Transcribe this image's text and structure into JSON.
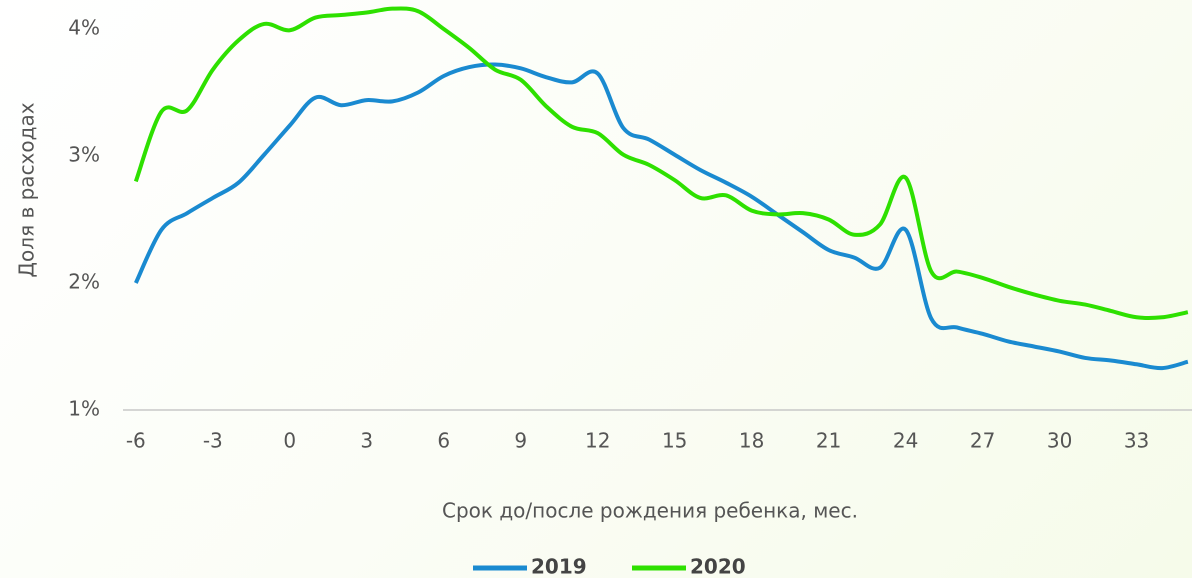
{
  "chart_data": {
    "type": "line",
    "xlabel": "Срок до/после рождения ребенка, мес.",
    "ylabel": "Доля в расходах",
    "x": [
      -6,
      -5,
      -4,
      -3,
      -2,
      -1,
      0,
      1,
      2,
      3,
      4,
      5,
      6,
      7,
      8,
      9,
      10,
      11,
      12,
      13,
      14,
      15,
      16,
      17,
      18,
      19,
      20,
      21,
      22,
      23,
      24,
      25,
      26,
      27,
      28,
      29,
      30,
      31,
      32,
      33,
      34,
      35
    ],
    "series": [
      {
        "name": "2019",
        "color": "#1a8ad0",
        "values": [
          2.0,
          2.42,
          2.55,
          2.67,
          2.79,
          3.01,
          3.24,
          3.46,
          3.4,
          3.44,
          3.43,
          3.5,
          3.63,
          3.7,
          3.72,
          3.69,
          3.62,
          3.58,
          3.65,
          3.22,
          3.13,
          3.01,
          2.89,
          2.79,
          2.68,
          2.54,
          2.4,
          2.26,
          2.2,
          2.12,
          2.42,
          1.72,
          1.65,
          1.6,
          1.54,
          1.5,
          1.46,
          1.41,
          1.39,
          1.36,
          1.33,
          1.38
        ]
      },
      {
        "name": "2020",
        "color": "#2ee000",
        "values": [
          2.8,
          3.35,
          3.36,
          3.68,
          3.91,
          4.04,
          3.99,
          4.09,
          4.11,
          4.13,
          4.16,
          4.14,
          4.0,
          3.85,
          3.68,
          3.6,
          3.39,
          3.23,
          3.18,
          3.01,
          2.93,
          2.81,
          2.67,
          2.69,
          2.57,
          2.54,
          2.55,
          2.5,
          2.38,
          2.46,
          2.83,
          2.09,
          2.09,
          2.04,
          1.97,
          1.91,
          1.86,
          1.83,
          1.78,
          1.73,
          1.73,
          1.77
        ]
      }
    ],
    "xlim": [
      -6.5,
      35.2
    ],
    "xticks": [
      -6,
      -3,
      0,
      3,
      6,
      9,
      12,
      15,
      18,
      21,
      24,
      27,
      30,
      33
    ],
    "ylim": [
      1,
      4.2
    ],
    "yticks": [
      {
        "value": 1,
        "label": "1%"
      },
      {
        "value": 2,
        "label": "2%"
      },
      {
        "value": 3,
        "label": "3%"
      },
      {
        "value": 4,
        "label": "4%"
      }
    ],
    "legend": "bottom"
  }
}
